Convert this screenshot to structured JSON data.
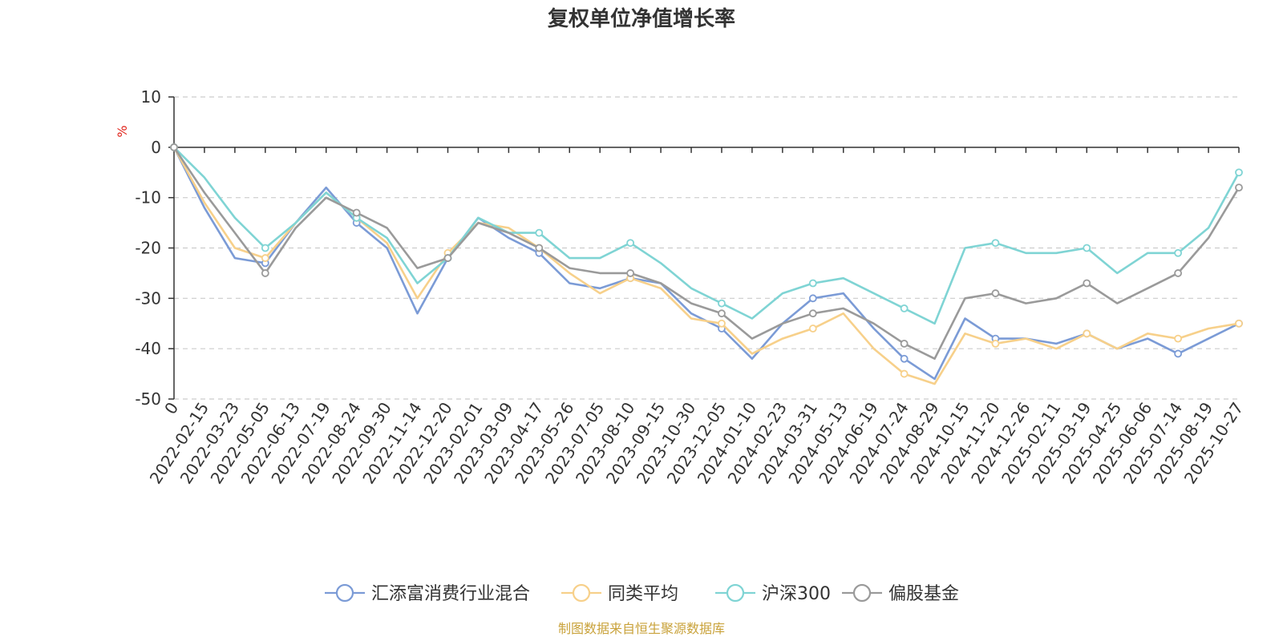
{
  "chart_data": {
    "type": "line",
    "title": "复权单位净值增长率",
    "ylabel": "%",
    "ylim": [
      -50,
      10
    ],
    "yticks": [
      10,
      0,
      -10,
      -20,
      -30,
      -40,
      -50
    ],
    "x_labels": [
      "0",
      "2022-02-15",
      "2022-03-23",
      "2022-05-05",
      "2022-06-13",
      "2022-07-19",
      "2022-08-24",
      "2022-09-30",
      "2022-11-14",
      "2022-12-20",
      "2023-02-01",
      "2023-03-09",
      "2023-04-17",
      "2023-05-26",
      "2023-07-05",
      "2023-08-10",
      "2023-09-15",
      "2023-10-30",
      "2023-12-05",
      "2024-01-10",
      "2024-02-23",
      "2024-03-31",
      "2024-05-13",
      "2024-06-19",
      "2024-07-24",
      "2024-08-29",
      "2024-10-15",
      "2024-11-20",
      "2024-12-26",
      "2025-02-11",
      "2025-03-19",
      "2025-04-25",
      "2025-06-06",
      "2025-07-14",
      "2025-08-19",
      "2025-10-27"
    ],
    "grid": true,
    "legend_position": "bottom-center",
    "series": [
      {
        "name": "汇添富消费行业混合",
        "color": "#7b9bd6",
        "values": [
          0,
          -12,
          -22,
          -23,
          -15,
          -8,
          -15,
          -20,
          -33,
          -22,
          -14,
          -18,
          -21,
          -27,
          -28,
          -26,
          -27,
          -33,
          -36,
          -42,
          -35,
          -30,
          -29,
          -36,
          -42,
          -46,
          -34,
          -38,
          -38,
          -39,
          -37,
          -40,
          -38,
          -41,
          -38,
          -35
        ]
      },
      {
        "name": "同类平均",
        "color": "#f7d08a",
        "values": [
          0,
          -11,
          -20,
          -22,
          -15,
          -9,
          -14,
          -19,
          -30,
          -21,
          -15,
          -16,
          -20,
          -25,
          -29,
          -26,
          -28,
          -34,
          -35,
          -41,
          -38,
          -36,
          -33,
          -40,
          -45,
          -47,
          -37,
          -39,
          -38,
          -40,
          -37,
          -40,
          -37,
          -38,
          -36,
          -35
        ]
      },
      {
        "name": "沪深300",
        "color": "#7fd4d4",
        "values": [
          0,
          -6,
          -14,
          -20,
          -15,
          -9,
          -14,
          -18,
          -27,
          -22,
          -14,
          -17,
          -17,
          -22,
          -22,
          -19,
          -23,
          -28,
          -31,
          -34,
          -29,
          -27,
          -26,
          -29,
          -32,
          -35,
          -20,
          -19,
          -21,
          -21,
          -20,
          -25,
          -21,
          -21,
          -16,
          -5
        ]
      },
      {
        "name": "偏股基金",
        "color": "#9a9a9a",
        "values": [
          0,
          -9,
          -17,
          -25,
          -16,
          -10,
          -13,
          -16,
          -24,
          -22,
          -15,
          -17,
          -20,
          -24,
          -25,
          -25,
          -27,
          -31,
          -33,
          -38,
          -35,
          -33,
          -32,
          -35,
          -39,
          -42,
          -30,
          -29,
          -31,
          -30,
          -27,
          -31,
          -28,
          -25,
          -18,
          -8
        ]
      }
    ]
  },
  "source_note": "制图数据来自恒生聚源数据库"
}
